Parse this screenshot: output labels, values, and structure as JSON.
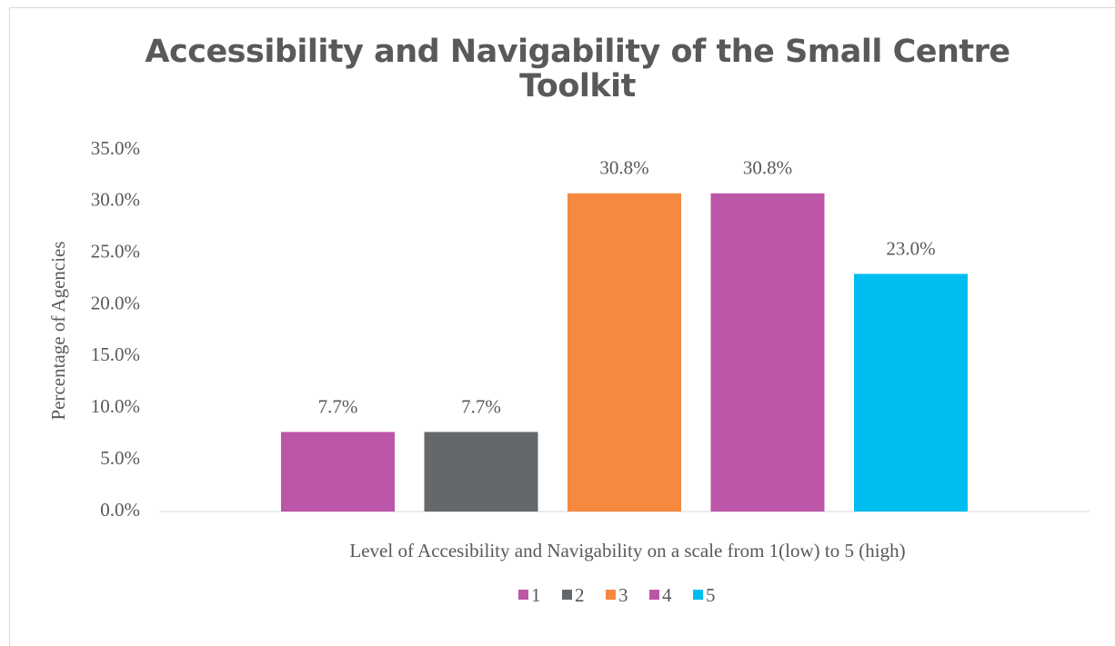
{
  "chart_data": {
    "type": "bar",
    "title": "Accessibility and Navigability of the Small Centre Toolkit",
    "x_label": "Level of Accesibility and Navigability on a scale from 1(low) to 5 (high)",
    "y_label": "Percentage of Agencies",
    "categories": [
      null
    ],
    "series": [
      {
        "name": "1",
        "color": "#bc56a8",
        "values": [
          7.7
        ],
        "value_labels": [
          "7.7%"
        ]
      },
      {
        "name": "2",
        "color": "#65686b",
        "values": [
          7.7
        ],
        "value_labels": [
          "7.7%"
        ]
      },
      {
        "name": "3",
        "color": "#f5893f",
        "values": [
          30.8
        ],
        "value_labels": [
          "30.8%"
        ]
      },
      {
        "name": "4",
        "color": "#bc56a8",
        "values": [
          30.8
        ],
        "value_labels": [
          "30.8%"
        ]
      },
      {
        "name": "5",
        "color": "#00bdf0",
        "values": [
          23.0
        ],
        "value_labels": [
          "23.0%"
        ]
      }
    ],
    "ylim": [
      0,
      35
    ],
    "yticks": [
      {
        "value": 0,
        "label": "0.0%"
      },
      {
        "value": 5,
        "label": "5.0%"
      },
      {
        "value": 10,
        "label": "10.0%"
      },
      {
        "value": 15,
        "label": "15.0%"
      },
      {
        "value": 20,
        "label": "20.0%"
      },
      {
        "value": 25,
        "label": "25.0%"
      },
      {
        "value": 30,
        "label": "30.0%"
      },
      {
        "value": 35,
        "label": "35.0%"
      }
    ],
    "grid": false,
    "legend": "bottom"
  }
}
